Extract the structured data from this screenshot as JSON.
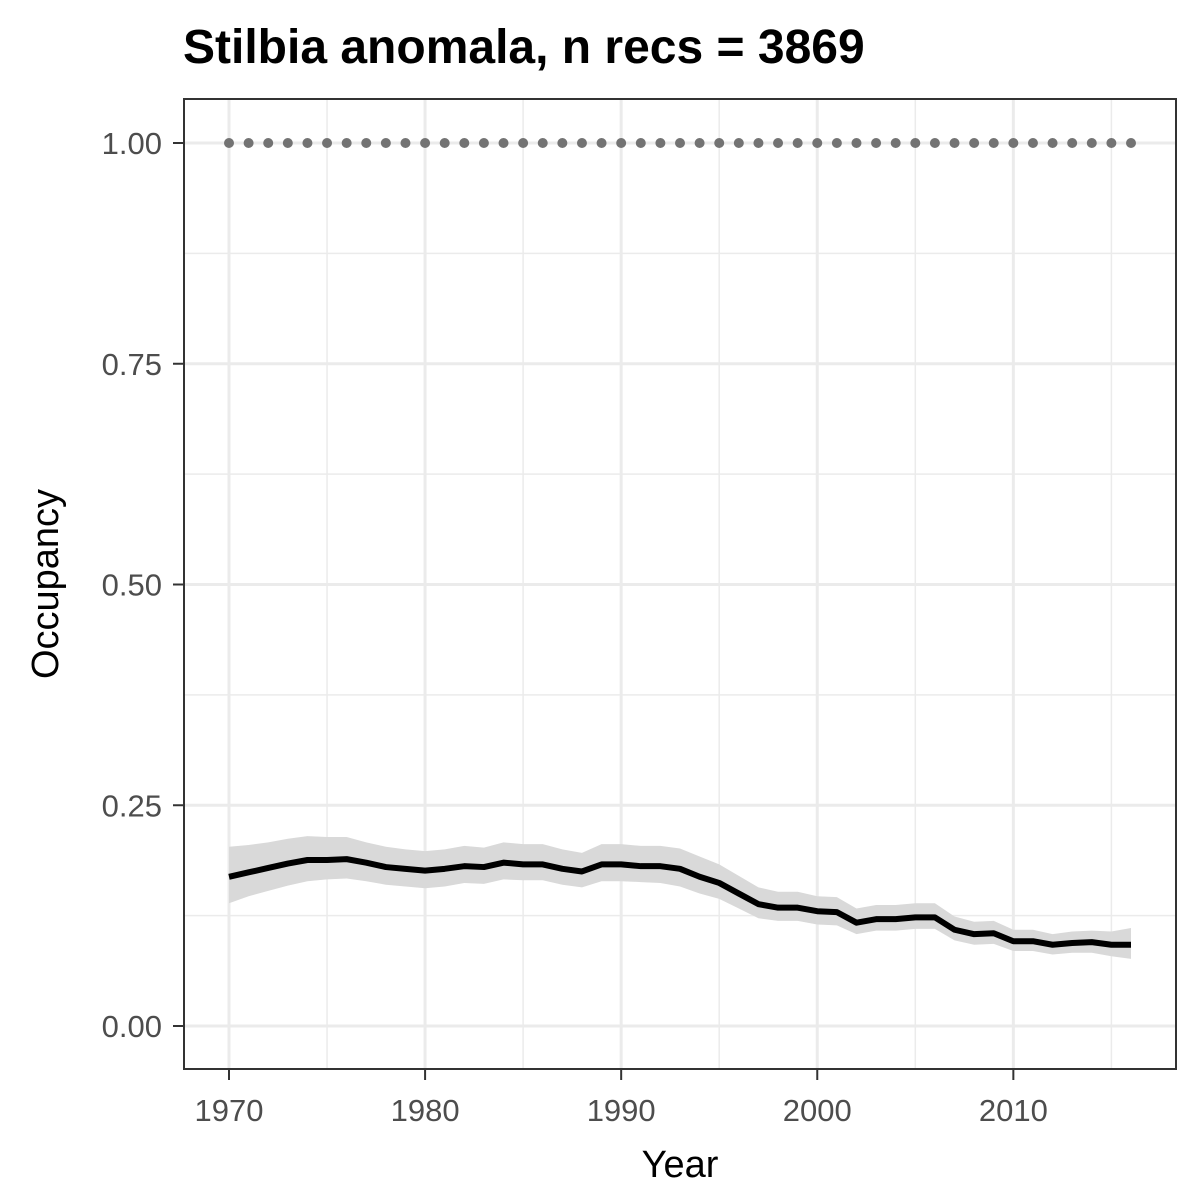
{
  "chart_data": {
    "type": "line",
    "title": "Stilbia anomala, n recs = 3869",
    "xlabel": "Year",
    "ylabel": "Occupancy",
    "xlim": [
      1967.75,
      1918.0
    ],
    "ylim": [
      -0.05,
      1.05
    ],
    "x_ticks": [
      1970,
      1980,
      1990,
      2000,
      2010
    ],
    "x_tick_labels": [
      "1970",
      "1980",
      "1990",
      "2000",
      "2010"
    ],
    "y_ticks": [
      0,
      0.25,
      0.5,
      0.75,
      1.0
    ],
    "y_tick_labels": [
      "0.00",
      "0.25",
      "0.50",
      "0.75",
      "1.00"
    ],
    "grid": true,
    "colors": {
      "line": "#000000",
      "ribbon": "#d9d9d9",
      "dots": "#737373",
      "grid": "#ebebeb",
      "border": "#333333"
    },
    "x": [
      1970,
      1971,
      1972,
      1973,
      1974,
      1975,
      1976,
      1977,
      1978,
      1979,
      1980,
      1981,
      1982,
      1983,
      1984,
      1985,
      1986,
      1987,
      1988,
      1989,
      1990,
      1991,
      1992,
      1993,
      1994,
      1995,
      1996,
      1997,
      1998,
      1999,
      2000,
      2001,
      2002,
      2003,
      2004,
      2005,
      2006,
      2007,
      2008,
      2009,
      2010,
      2011,
      2012,
      2013,
      2014,
      2015,
      2016
    ],
    "series": [
      {
        "type": "line",
        "values": [
          0.169,
          0.174,
          0.179,
          0.184,
          0.188,
          0.188,
          0.189,
          0.185,
          0.18,
          0.178,
          0.176,
          0.178,
          0.181,
          0.18,
          0.185,
          0.183,
          0.183,
          0.178,
          0.175,
          0.183,
          0.183,
          0.181,
          0.181,
          0.178,
          0.169,
          0.162,
          0.15,
          0.138,
          0.134,
          0.134,
          0.13,
          0.129,
          0.117,
          0.121,
          0.121,
          0.123,
          0.123,
          0.109,
          0.104,
          0.105,
          0.096,
          0.096,
          0.092,
          0.094,
          0.095,
          0.092,
          0.092
        ],
        "lower": [
          0.139,
          0.147,
          0.153,
          0.159,
          0.164,
          0.166,
          0.167,
          0.164,
          0.16,
          0.158,
          0.156,
          0.158,
          0.162,
          0.161,
          0.166,
          0.165,
          0.165,
          0.16,
          0.157,
          0.164,
          0.164,
          0.163,
          0.162,
          0.158,
          0.15,
          0.144,
          0.133,
          0.122,
          0.119,
          0.119,
          0.115,
          0.114,
          0.104,
          0.108,
          0.108,
          0.11,
          0.11,
          0.097,
          0.092,
          0.093,
          0.085,
          0.085,
          0.081,
          0.083,
          0.083,
          0.079,
          0.076
        ],
        "upper": [
          0.203,
          0.205,
          0.208,
          0.212,
          0.215,
          0.214,
          0.214,
          0.208,
          0.203,
          0.2,
          0.198,
          0.2,
          0.204,
          0.202,
          0.208,
          0.206,
          0.206,
          0.2,
          0.196,
          0.206,
          0.206,
          0.204,
          0.204,
          0.201,
          0.192,
          0.183,
          0.17,
          0.157,
          0.152,
          0.152,
          0.147,
          0.146,
          0.133,
          0.137,
          0.137,
          0.139,
          0.139,
          0.124,
          0.118,
          0.119,
          0.109,
          0.109,
          0.104,
          0.107,
          0.108,
          0.107,
          0.111
        ]
      },
      {
        "type": "scatter",
        "values": [
          1,
          1,
          1,
          1,
          1,
          1,
          1,
          1,
          1,
          1,
          1,
          1,
          1,
          1,
          1,
          1,
          1,
          1,
          1,
          1,
          1,
          1,
          1,
          1,
          1,
          1,
          1,
          1,
          1,
          1,
          1,
          1,
          1,
          1,
          1,
          1,
          1,
          1,
          1,
          1,
          1,
          1,
          1,
          1,
          1,
          1,
          1
        ]
      }
    ]
  }
}
